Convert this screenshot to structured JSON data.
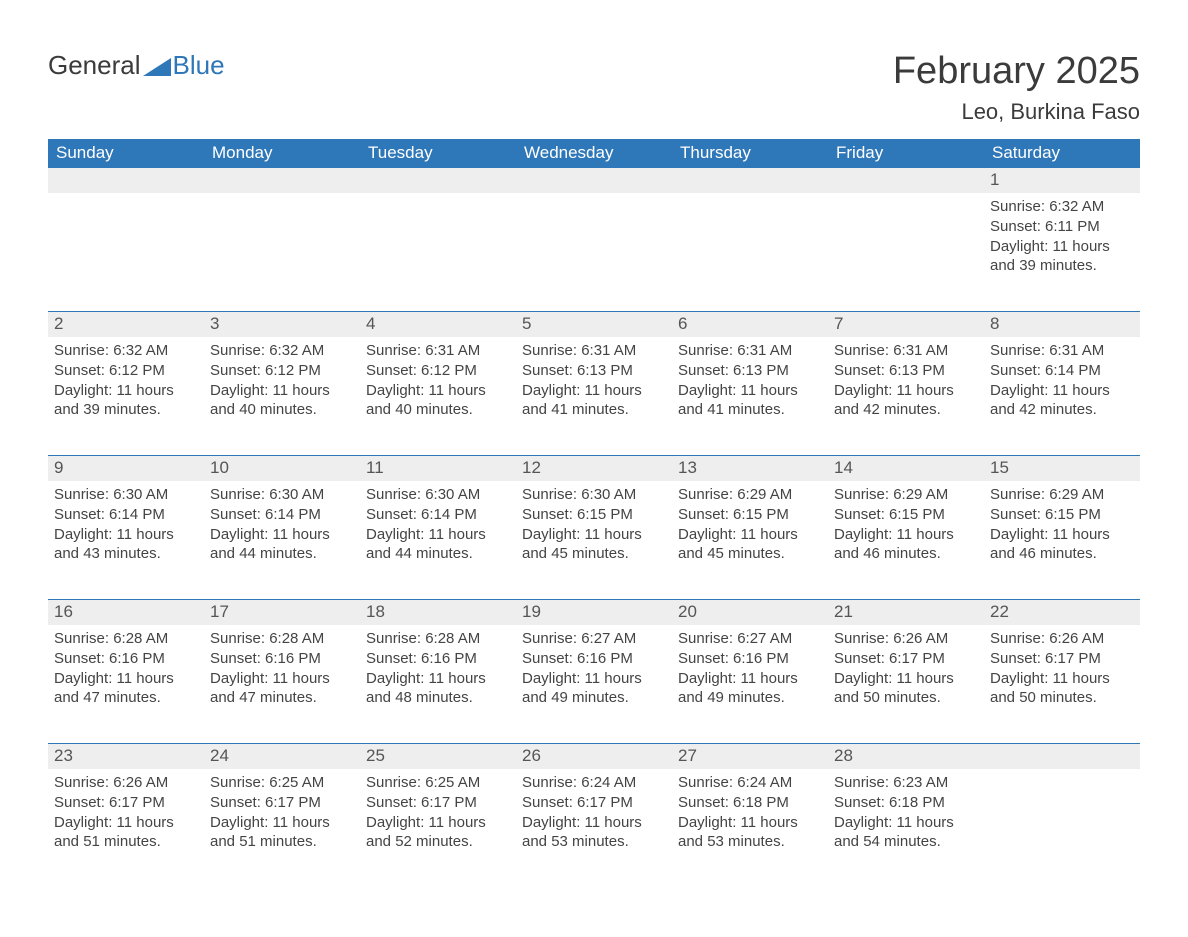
{
  "logo": {
    "text1": "General",
    "text2": "Blue",
    "color1": "#3b3b3b",
    "color2": "#2e77b8"
  },
  "title": "February 2025",
  "subtitle": "Leo, Burkina Faso",
  "styling": {
    "header_bg": "#2e77b8",
    "header_text": "#ffffff",
    "daynum_bg": "#eeeeee",
    "daynum_text": "#555555",
    "body_text": "#444444",
    "rule_color": "#2e77b8",
    "page_bg": "#ffffff",
    "title_fontsize": 38,
    "subtitle_fontsize": 22,
    "header_fontsize": 17,
    "daynum_fontsize": 17,
    "body_fontsize": 15
  },
  "day_names": [
    "Sunday",
    "Monday",
    "Tuesday",
    "Wednesday",
    "Thursday",
    "Friday",
    "Saturday"
  ],
  "weeks": [
    [
      null,
      null,
      null,
      null,
      null,
      null,
      {
        "n": "1",
        "sunrise": "6:32 AM",
        "sunset": "6:11 PM",
        "daylight": "11 hours and 39 minutes."
      }
    ],
    [
      {
        "n": "2",
        "sunrise": "6:32 AM",
        "sunset": "6:12 PM",
        "daylight": "11 hours and 39 minutes."
      },
      {
        "n": "3",
        "sunrise": "6:32 AM",
        "sunset": "6:12 PM",
        "daylight": "11 hours and 40 minutes."
      },
      {
        "n": "4",
        "sunrise": "6:31 AM",
        "sunset": "6:12 PM",
        "daylight": "11 hours and 40 minutes."
      },
      {
        "n": "5",
        "sunrise": "6:31 AM",
        "sunset": "6:13 PM",
        "daylight": "11 hours and 41 minutes."
      },
      {
        "n": "6",
        "sunrise": "6:31 AM",
        "sunset": "6:13 PM",
        "daylight": "11 hours and 41 minutes."
      },
      {
        "n": "7",
        "sunrise": "6:31 AM",
        "sunset": "6:13 PM",
        "daylight": "11 hours and 42 minutes."
      },
      {
        "n": "8",
        "sunrise": "6:31 AM",
        "sunset": "6:14 PM",
        "daylight": "11 hours and 42 minutes."
      }
    ],
    [
      {
        "n": "9",
        "sunrise": "6:30 AM",
        "sunset": "6:14 PM",
        "daylight": "11 hours and 43 minutes."
      },
      {
        "n": "10",
        "sunrise": "6:30 AM",
        "sunset": "6:14 PM",
        "daylight": "11 hours and 44 minutes."
      },
      {
        "n": "11",
        "sunrise": "6:30 AM",
        "sunset": "6:14 PM",
        "daylight": "11 hours and 44 minutes."
      },
      {
        "n": "12",
        "sunrise": "6:30 AM",
        "sunset": "6:15 PM",
        "daylight": "11 hours and 45 minutes."
      },
      {
        "n": "13",
        "sunrise": "6:29 AM",
        "sunset": "6:15 PM",
        "daylight": "11 hours and 45 minutes."
      },
      {
        "n": "14",
        "sunrise": "6:29 AM",
        "sunset": "6:15 PM",
        "daylight": "11 hours and 46 minutes."
      },
      {
        "n": "15",
        "sunrise": "6:29 AM",
        "sunset": "6:15 PM",
        "daylight": "11 hours and 46 minutes."
      }
    ],
    [
      {
        "n": "16",
        "sunrise": "6:28 AM",
        "sunset": "6:16 PM",
        "daylight": "11 hours and 47 minutes."
      },
      {
        "n": "17",
        "sunrise": "6:28 AM",
        "sunset": "6:16 PM",
        "daylight": "11 hours and 47 minutes."
      },
      {
        "n": "18",
        "sunrise": "6:28 AM",
        "sunset": "6:16 PM",
        "daylight": "11 hours and 48 minutes."
      },
      {
        "n": "19",
        "sunrise": "6:27 AM",
        "sunset": "6:16 PM",
        "daylight": "11 hours and 49 minutes."
      },
      {
        "n": "20",
        "sunrise": "6:27 AM",
        "sunset": "6:16 PM",
        "daylight": "11 hours and 49 minutes."
      },
      {
        "n": "21",
        "sunrise": "6:26 AM",
        "sunset": "6:17 PM",
        "daylight": "11 hours and 50 minutes."
      },
      {
        "n": "22",
        "sunrise": "6:26 AM",
        "sunset": "6:17 PM",
        "daylight": "11 hours and 50 minutes."
      }
    ],
    [
      {
        "n": "23",
        "sunrise": "6:26 AM",
        "sunset": "6:17 PM",
        "daylight": "11 hours and 51 minutes."
      },
      {
        "n": "24",
        "sunrise": "6:25 AM",
        "sunset": "6:17 PM",
        "daylight": "11 hours and 51 minutes."
      },
      {
        "n": "25",
        "sunrise": "6:25 AM",
        "sunset": "6:17 PM",
        "daylight": "11 hours and 52 minutes."
      },
      {
        "n": "26",
        "sunrise": "6:24 AM",
        "sunset": "6:17 PM",
        "daylight": "11 hours and 53 minutes."
      },
      {
        "n": "27",
        "sunrise": "6:24 AM",
        "sunset": "6:18 PM",
        "daylight": "11 hours and 53 minutes."
      },
      {
        "n": "28",
        "sunrise": "6:23 AM",
        "sunset": "6:18 PM",
        "daylight": "11 hours and 54 minutes."
      },
      null
    ]
  ],
  "labels": {
    "sunrise": "Sunrise: ",
    "sunset": "Sunset: ",
    "daylight": "Daylight: "
  }
}
